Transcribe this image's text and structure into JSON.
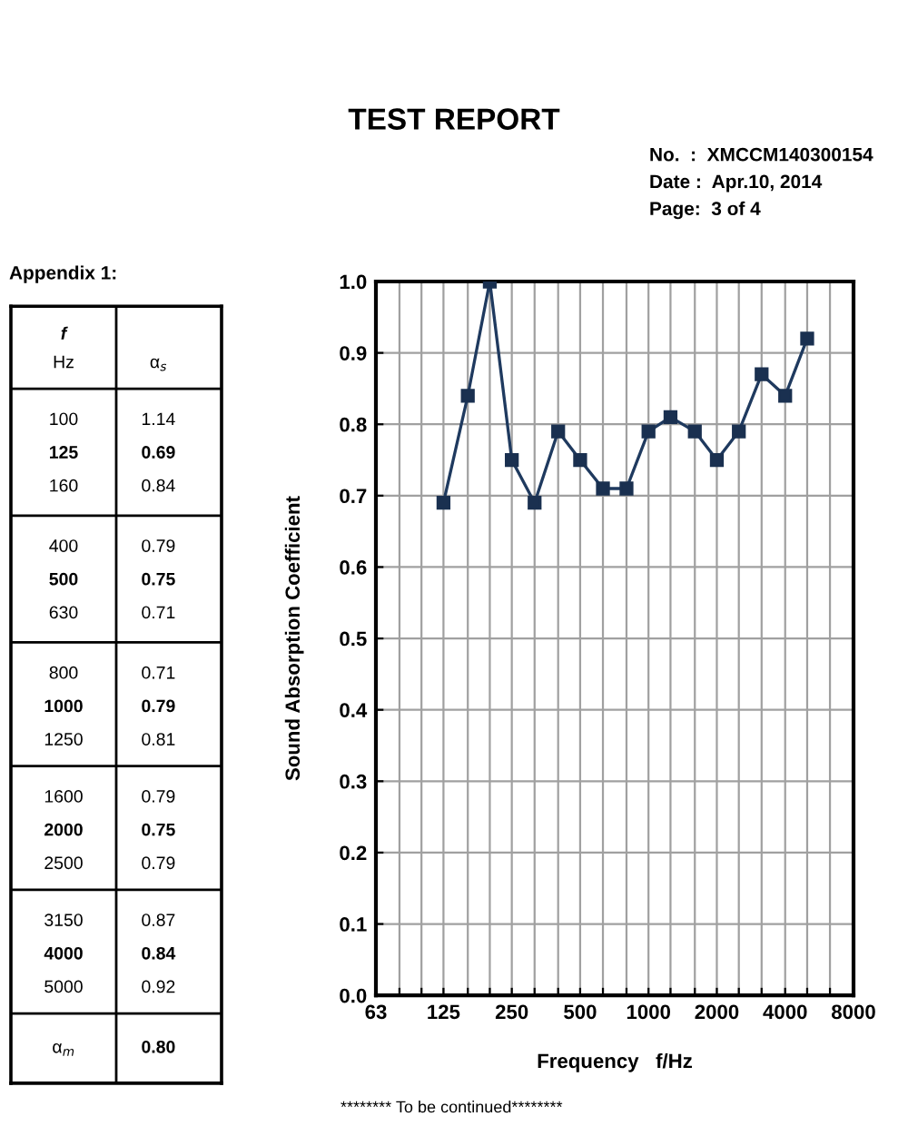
{
  "chart_data": [
    {
      "type": "line",
      "title": "TEST REPORT",
      "xlabel": "Frequency   f/Hz",
      "ylabel": "Sound Absorption Coefficient",
      "annotations": [
        "No.  :  XMCCM140300154",
        "Date :  Apr.10, 2014",
        "Page:  3 of 4",
        "Appendix 1:",
        "******** To be continued********"
      ],
      "log": "x",
      "series": [
        {
          "color": "#1f3a5f",
          "x": [
            125,
            160,
            200,
            250,
            315,
            400,
            500,
            630,
            800,
            1000,
            1250,
            1600,
            2000,
            2500,
            3150,
            4000,
            5000
          ],
          "values": [
            0.69,
            0.84,
            1.0,
            0.75,
            0.69,
            0.79,
            0.75,
            0.71,
            0.71,
            0.79,
            0.81,
            0.79,
            0.75,
            0.79,
            0.87,
            0.84,
            0.92
          ]
        }
      ],
      "marker": "square",
      "line_style": "solid",
      "grid": true,
      "xlim": [
        63,
        8000
      ],
      "xticks": [
        63,
        {
          "value": 80,
          "label": null
        },
        {
          "value": 100,
          "label": null
        },
        125,
        {
          "value": 160,
          "label": null
        },
        {
          "value": 200,
          "label": null
        },
        250,
        {
          "value": 315,
          "label": null
        },
        {
          "value": 400,
          "label": null
        },
        500,
        {
          "value": 630,
          "label": null
        },
        {
          "value": 800,
          "label": null
        },
        1000,
        {
          "value": 1250,
          "label": null
        },
        {
          "value": 1600,
          "label": null
        },
        2000,
        {
          "value": 2500,
          "label": null
        },
        {
          "value": 3150,
          "label": null
        },
        4000,
        {
          "value": 5000,
          "label": null
        },
        {
          "value": 6300,
          "label": null
        },
        8000
      ],
      "ylim": [
        0,
        1.0
      ],
      "yticks": [
        {
          "value": 0,
          "label": "0.0"
        },
        0.1,
        0.2,
        0.3,
        0.4,
        0.5,
        0.6,
        0.7,
        0.8,
        0.9,
        {
          "value": 1.0,
          "label": "1.0"
        }
      ]
    },
    {
      "type": "other",
      "annotations": [
        "f",
        "Hz",
        "α$_{s}$",
        "100",
        "1.14",
        "125",
        "0.69",
        "160",
        "0.84",
        "400",
        "0.79",
        "500",
        "0.75",
        "630",
        "0.71",
        "800",
        "0.71",
        "1000",
        "0.79",
        "1250",
        "0.81",
        "1600",
        "0.79",
        "2000",
        "0.75",
        "2500",
        "0.79",
        "3150",
        "0.87",
        "4000",
        "0.84",
        "5000",
        "0.92",
        "α$_{m}$",
        "0.80"
      ]
    }
  ]
}
